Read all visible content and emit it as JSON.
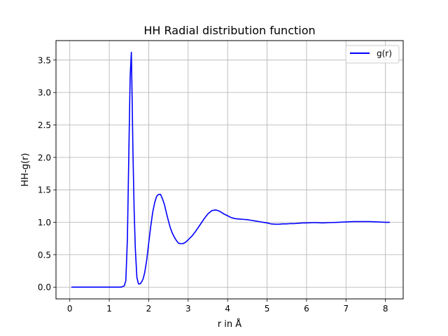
{
  "chart_data": {
    "type": "line",
    "title": "HH Radial distribution function",
    "xlabel": "r in Å",
    "ylabel": "HH-g(r)",
    "xlim": [
      -0.35,
      8.45
    ],
    "ylim": [
      -0.181,
      3.8
    ],
    "xticks": [
      0,
      1,
      2,
      3,
      4,
      5,
      6,
      7,
      8
    ],
    "xtick_labels": [
      "0",
      "1",
      "2",
      "3",
      "4",
      "5",
      "6",
      "7",
      "8"
    ],
    "yticks": [
      0.0,
      0.5,
      1.0,
      1.5,
      2.0,
      2.5,
      3.0,
      3.5
    ],
    "ytick_labels": [
      "0.0",
      "0.5",
      "1.0",
      "1.5",
      "2.0",
      "2.5",
      "3.0",
      "3.5"
    ],
    "grid": true,
    "legend_position": "top-right",
    "series": [
      {
        "name": "g(r)",
        "color": "#0000ff",
        "x": [
          0.05,
          0.5,
          1.0,
          1.3,
          1.38,
          1.42,
          1.46,
          1.5,
          1.53,
          1.56,
          1.58,
          1.6,
          1.63,
          1.66,
          1.7,
          1.74,
          1.78,
          1.82,
          1.86,
          1.9,
          1.95,
          2.0,
          2.05,
          2.1,
          2.15,
          2.2,
          2.25,
          2.3,
          2.35,
          2.4,
          2.45,
          2.5,
          2.55,
          2.6,
          2.65,
          2.7,
          2.75,
          2.8,
          2.85,
          2.9,
          2.95,
          3.0,
          3.05,
          3.1,
          3.15,
          3.2,
          3.3,
          3.4,
          3.5,
          3.6,
          3.7,
          3.8,
          3.9,
          4.0,
          4.1,
          4.2,
          4.3,
          4.4,
          4.5,
          4.6,
          4.7,
          4.8,
          4.9,
          5.0,
          5.1,
          5.2,
          5.3,
          5.4,
          5.5,
          5.6,
          5.7,
          5.8,
          5.9,
          6.0,
          6.2,
          6.4,
          6.6,
          6.8,
          7.0,
          7.2,
          7.4,
          7.6,
          7.8,
          8.0,
          8.1
        ],
        "values": [
          0.0,
          0.0,
          0.0,
          0.0,
          0.02,
          0.1,
          0.75,
          2.2,
          3.25,
          3.62,
          2.9,
          2.1,
          1.2,
          0.6,
          0.15,
          0.05,
          0.05,
          0.08,
          0.13,
          0.23,
          0.42,
          0.68,
          0.93,
          1.15,
          1.3,
          1.4,
          1.43,
          1.43,
          1.36,
          1.27,
          1.14,
          1.02,
          0.91,
          0.83,
          0.77,
          0.72,
          0.68,
          0.67,
          0.67,
          0.68,
          0.7,
          0.73,
          0.76,
          0.79,
          0.83,
          0.87,
          0.96,
          1.05,
          1.13,
          1.18,
          1.19,
          1.17,
          1.13,
          1.1,
          1.07,
          1.055,
          1.05,
          1.045,
          1.04,
          1.03,
          1.02,
          1.01,
          1.0,
          0.99,
          0.975,
          0.97,
          0.97,
          0.975,
          0.975,
          0.98,
          0.98,
          0.985,
          0.99,
          0.99,
          0.995,
          0.99,
          0.995,
          1.0,
          1.005,
          1.01,
          1.01,
          1.01,
          1.005,
          1.0,
          1.0
        ]
      }
    ]
  }
}
